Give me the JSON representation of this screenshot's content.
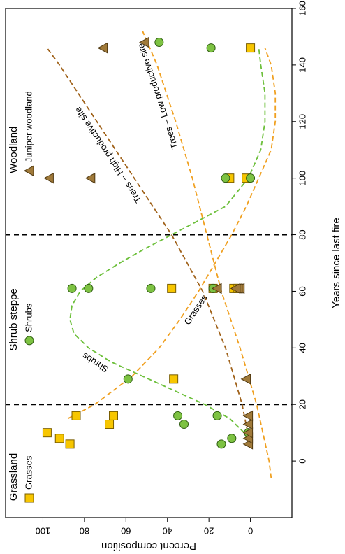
{
  "chart_data": {
    "type": "scatter",
    "xlabel": "Years since last fire",
    "ylabel": "Percent composition",
    "xlim": [
      -20,
      160
    ],
    "ylim": [
      -20,
      118
    ],
    "xticks": [
      0,
      20,
      40,
      60,
      80,
      100,
      120,
      140,
      160
    ],
    "yticks": [
      0,
      20,
      40,
      60,
      80,
      100
    ],
    "boundaries": [
      20,
      80
    ],
    "zones": [
      "Grassland",
      "Shrub steppe",
      "Woodland"
    ],
    "series": [
      {
        "name": "Grasses",
        "color": "#f7c600",
        "marker": "square",
        "x": [
          10,
          8,
          6,
          16,
          13,
          16,
          29,
          61,
          61,
          61,
          61,
          100,
          100,
          146
        ],
        "values": [
          98,
          92,
          87,
          84,
          68,
          66,
          37,
          38,
          18,
          8,
          6,
          10,
          2,
          0
        ]
      },
      {
        "name": "Shrubs",
        "color": "#7dc242",
        "marker": "circle",
        "x": [
          6,
          8,
          16,
          16,
          13,
          10,
          29,
          61,
          61,
          61,
          61,
          100,
          100,
          146,
          148
        ],
        "values": [
          14,
          9,
          16,
          35,
          32,
          1,
          59,
          86,
          78,
          48,
          18,
          12,
          0,
          19,
          44
        ]
      },
      {
        "name": "Juniper woodland",
        "color": "#a07a3a",
        "marker": "triangle",
        "x": [
          6,
          8,
          10,
          13,
          16,
          29,
          61,
          61,
          61,
          61,
          100,
          100,
          146,
          148
        ],
        "values": [
          1,
          1,
          1,
          1,
          1,
          2,
          5,
          6,
          7,
          16,
          97,
          77,
          71,
          51
        ]
      }
    ],
    "trends": [
      {
        "name": "Shrubs",
        "color": "#6cbf3a",
        "x": [
          5,
          10,
          15,
          20,
          25,
          30,
          35,
          40,
          45,
          50,
          55,
          60,
          65,
          70,
          75,
          80,
          90,
          100,
          110,
          120,
          130,
          140,
          146
        ],
        "values": [
          0,
          3,
          10,
          22,
          37,
          52,
          67,
          78,
          85,
          87,
          86,
          82,
          74,
          63,
          51,
          38,
          12,
          1,
          -5,
          -7,
          -7,
          -5,
          -4
        ]
      },
      {
        "name": "Grasses",
        "color": "#f0a020",
        "x": [
          15,
          20,
          30,
          40,
          50,
          60,
          70,
          80,
          90,
          100,
          110,
          120,
          130,
          140,
          146
        ],
        "values": [
          88,
          75,
          57,
          44,
          34,
          25,
          17,
          9,
          2,
          -4,
          -10,
          -12,
          -12,
          -10,
          -7
        ]
      },
      {
        "name": "Trees – High productive site",
        "color": "#a0621a",
        "x": [
          5,
          20,
          40,
          60,
          80,
          100,
          120,
          140,
          146
        ],
        "values": [
          0,
          4,
          12,
          23,
          38,
          56,
          74,
          92,
          98
        ]
      },
      {
        "name": "Trees – Low productive site",
        "color": "#f0a020",
        "x": [
          -6,
          0,
          10,
          20,
          40,
          60,
          80,
          100,
          120,
          140,
          152
        ],
        "values": [
          -10,
          -9,
          -6,
          -3,
          5,
          14,
          21,
          28,
          36,
          45,
          52
        ]
      }
    ]
  }
}
